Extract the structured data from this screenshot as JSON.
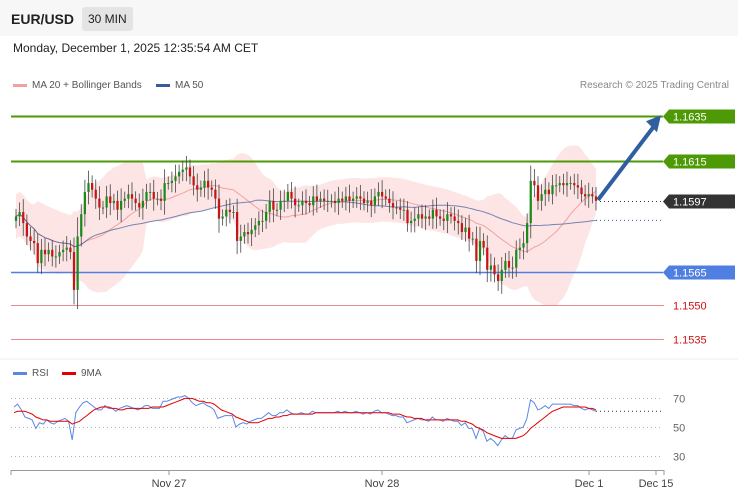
{
  "header": {
    "symbol": "EUR/USD",
    "timeframe": "30 MIN"
  },
  "timestamp": "Monday, December 1, 2025 12:35:54 AM CET",
  "legend": {
    "ma20": {
      "label": "MA 20 + Bollinger Bands",
      "color": "#f4a0a0"
    },
    "ma50": {
      "label": "MA 50",
      "color": "#3a5a9a"
    },
    "credit": "Research © 2025 Trading Central"
  },
  "rsi_legend": {
    "rsi": {
      "label": "RSI",
      "color": "#5b86e5"
    },
    "ma9": {
      "label": "9MA",
      "color": "#e00000"
    }
  },
  "colors": {
    "up": "#1a8a1a",
    "down": "#c81414",
    "target": "#4e9a06",
    "support": "#4f7fe0",
    "minor": "#f08a8a",
    "arrow": "#2f5fa0",
    "current": "#333333"
  },
  "chart_data": [
    {
      "type": "candlestick",
      "ylim": [
        1.153,
        1.1645
      ],
      "xticks": [
        "Nov 27",
        "Nov 28",
        "Dec 1",
        "Dec 15"
      ],
      "levels": [
        {
          "label": "1.1635",
          "value": 1.1635,
          "style": "target"
        },
        {
          "label": "1.1615",
          "value": 1.1615,
          "style": "target"
        },
        {
          "label": "1.1597",
          "value": 1.1597,
          "style": "current"
        },
        {
          "label": "1.1565",
          "value": 1.1565,
          "style": "support"
        },
        {
          "label": "1.1550",
          "value": 1.155,
          "style": "minor"
        },
        {
          "label": "1.1535",
          "value": 1.1535,
          "style": "minor"
        }
      ],
      "close": [
        1.159,
        1.1592,
        1.1587,
        1.1581,
        1.1579,
        1.1578,
        1.1569,
        1.1575,
        1.1573,
        1.1575,
        1.1572,
        1.1572,
        1.1574,
        1.1575,
        1.1576,
        1.1574,
        1.1557,
        1.1581,
        1.1591,
        1.1601,
        1.1605,
        1.1602,
        1.1598,
        1.1594,
        1.1594,
        1.1599,
        1.1596,
        1.1597,
        1.1593,
        1.1597,
        1.1598,
        1.16,
        1.1598,
        1.1596,
        1.1594,
        1.1597,
        1.1601,
        1.1601,
        1.1598,
        1.1598,
        1.1597,
        1.1605,
        1.1605,
        1.1606,
        1.1608,
        1.161,
        1.1611,
        1.1612,
        1.1608,
        1.1604,
        1.1602,
        1.1603,
        1.1606,
        1.1603,
        1.1602,
        1.1598,
        1.1589,
        1.159,
        1.1593,
        1.1592,
        1.1592,
        1.1579,
        1.1581,
        1.1583,
        1.1582,
        1.1584,
        1.1586,
        1.1588,
        1.1588,
        1.1592,
        1.1597,
        1.1593,
        1.1593,
        1.1597,
        1.1597,
        1.1601,
        1.1598,
        1.1595,
        1.1595,
        1.1597,
        1.1596,
        1.1595,
        1.1599,
        1.1597,
        1.1598,
        1.1597,
        1.1597,
        1.1597,
        1.1596,
        1.1598,
        1.1597,
        1.1599,
        1.1597,
        1.1598,
        1.1599,
        1.1598,
        1.1596,
        1.1597,
        1.1595,
        1.1599,
        1.1601,
        1.1599,
        1.1598,
        1.1596,
        1.1594,
        1.1594,
        1.1593,
        1.1593,
        1.1587,
        1.1588,
        1.1589,
        1.1591,
        1.1589,
        1.159,
        1.1589,
        1.1593,
        1.159,
        1.1589,
        1.1588,
        1.1591,
        1.159,
        1.1588,
        1.1587,
        1.1583,
        1.1585,
        1.158,
        1.158,
        1.157,
        1.1579,
        1.1576,
        1.1566,
        1.1568,
        1.1564,
        1.1561,
        1.1566,
        1.157,
        1.1567,
        1.1567,
        1.1575,
        1.1576,
        1.1578,
        1.1587,
        1.1606,
        1.1604,
        1.1597,
        1.16,
        1.1602,
        1.16,
        1.1604,
        1.1604,
        1.1605,
        1.1604,
        1.1605,
        1.1605,
        1.1604,
        1.1603,
        1.16,
        1.1599,
        1.16,
        1.1599,
        1.1597
      ]
    },
    {
      "type": "line",
      "title": "RSI",
      "ylim": [
        22,
        78
      ],
      "yticks": [
        30,
        50,
        70
      ],
      "series": [
        {
          "name": "RSI",
          "values": [
            64,
            66,
            62,
            57,
            56,
            55,
            49,
            53,
            52,
            55,
            53,
            52,
            54,
            55,
            56,
            54,
            41,
            60,
            64,
            67,
            68,
            66,
            64,
            62,
            62,
            65,
            63,
            63,
            61,
            63,
            64,
            65,
            64,
            63,
            62,
            63,
            65,
            65,
            63,
            63,
            63,
            68,
            68,
            69,
            70,
            71,
            71,
            72,
            70,
            67,
            65,
            66,
            67,
            65,
            64,
            62,
            56,
            57,
            58,
            58,
            58,
            50,
            52,
            53,
            52,
            54,
            55,
            56,
            56,
            58,
            60,
            58,
            58,
            60,
            60,
            62,
            60,
            59,
            59,
            60,
            59,
            59,
            61,
            60,
            60,
            60,
            60,
            60,
            60,
            61,
            60,
            61,
            60,
            60,
            61,
            60,
            59,
            60,
            59,
            61,
            62,
            60,
            60,
            59,
            58,
            58,
            57,
            57,
            53,
            54,
            55,
            56,
            55,
            55,
            54,
            57,
            55,
            55,
            54,
            56,
            55,
            54,
            54,
            51,
            53,
            49,
            49,
            42,
            49,
            47,
            40,
            42,
            40,
            37,
            41,
            44,
            42,
            42,
            48,
            49,
            50,
            56,
            69,
            67,
            62,
            63,
            65,
            63,
            66,
            66,
            66,
            66,
            66,
            66,
            65,
            65,
            63,
            62,
            63,
            62,
            61
          ]
        },
        {
          "name": "9MA",
          "values": [
            60,
            61,
            61,
            61,
            60,
            59,
            57,
            56,
            55,
            55,
            54,
            54,
            54,
            54,
            54,
            54,
            52,
            53,
            54,
            56,
            58,
            60,
            62,
            63,
            64,
            64,
            64,
            63,
            63,
            62,
            62,
            63,
            63,
            63,
            63,
            63,
            63,
            63,
            64,
            64,
            64,
            64,
            65,
            66,
            67,
            68,
            69,
            70,
            70,
            70,
            69,
            68,
            68,
            67,
            67,
            66,
            64,
            62,
            61,
            60,
            59,
            57,
            56,
            55,
            54,
            53,
            53,
            53,
            54,
            55,
            56,
            56,
            57,
            57,
            58,
            58,
            59,
            59,
            59,
            59,
            59,
            59,
            59,
            60,
            60,
            60,
            60,
            60,
            60,
            60,
            60,
            60,
            60,
            60,
            60,
            60,
            60,
            60,
            60,
            60,
            60,
            60,
            60,
            60,
            59,
            59,
            59,
            58,
            57,
            57,
            56,
            56,
            56,
            55,
            55,
            55,
            55,
            55,
            55,
            55,
            55,
            55,
            55,
            54,
            54,
            53,
            52,
            50,
            49,
            48,
            46,
            45,
            44,
            43,
            42,
            42,
            42,
            42,
            42,
            43,
            44,
            46,
            49,
            51,
            53,
            55,
            57,
            59,
            61,
            62,
            63,
            64,
            64,
            64,
            64,
            64,
            64,
            64,
            63,
            63,
            62
          ]
        }
      ]
    }
  ]
}
